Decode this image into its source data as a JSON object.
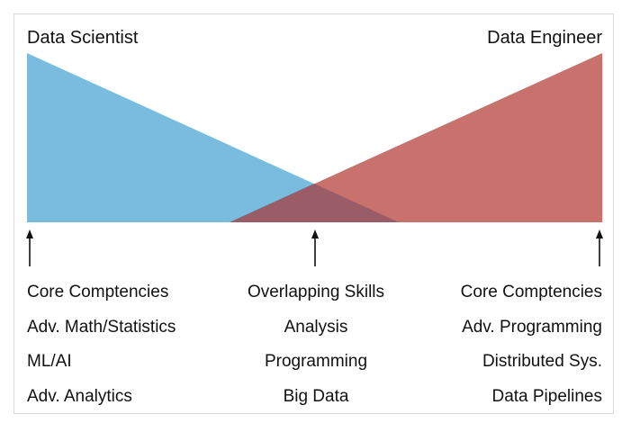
{
  "roles": {
    "left": "Data Scientist",
    "right": "Data Engineer"
  },
  "colors": {
    "data_scientist": "#79bcdd",
    "data_engineer": "#c9716c",
    "overlap": "#9a5c67",
    "arrow": "#111111"
  },
  "columns": {
    "left": {
      "header": "Core Comptencies",
      "items": [
        "Adv. Math/Statistics",
        "ML/AI",
        "Adv. Analytics"
      ]
    },
    "middle": {
      "header": "Overlapping Skills",
      "items": [
        "Analysis",
        "Programming",
        "Big Data"
      ]
    },
    "right": {
      "header": "Core Comptencies",
      "items": [
        "Adv. Programming",
        "Distributed Sys.",
        "Data Pipelines"
      ]
    }
  }
}
